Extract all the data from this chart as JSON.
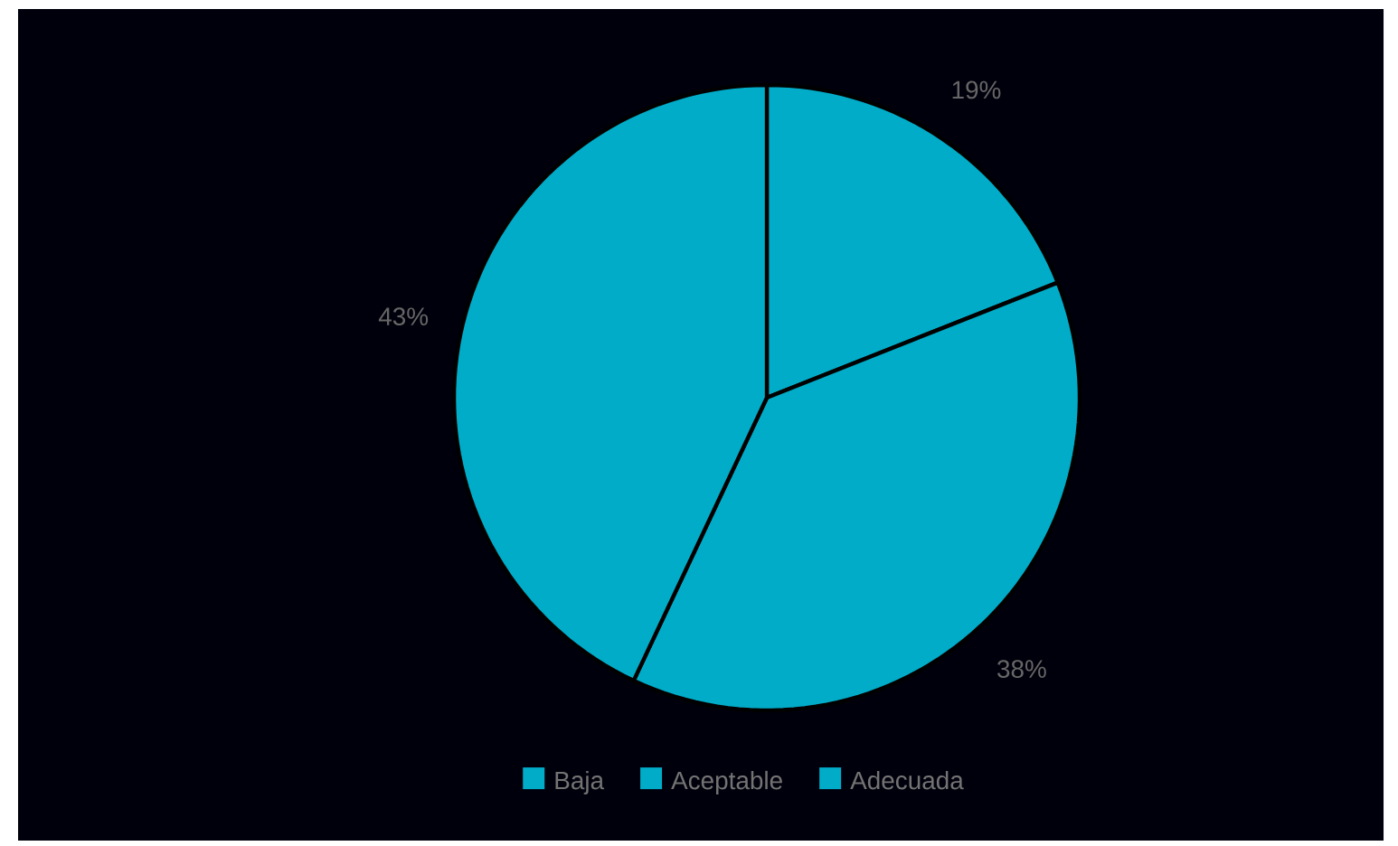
{
  "chart_data": {
    "type": "pie",
    "categories": [
      "Baja",
      "Aceptable",
      "Adecuada"
    ],
    "values": [
      19,
      38,
      43
    ],
    "colors": [
      "#00acc8",
      "#00acc8",
      "#00acc8"
    ],
    "value_labels": [
      "19%",
      "38%",
      "43%"
    ],
    "legend": "bottom"
  }
}
